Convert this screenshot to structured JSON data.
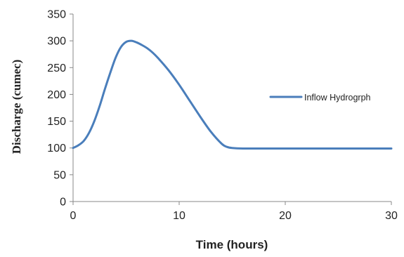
{
  "chart_data": {
    "type": "line",
    "title": "",
    "xlabel": "Time (hours)",
    "ylabel": "Discharge (cumec)",
    "xlim": [
      0,
      30
    ],
    "ylim": [
      0,
      350
    ],
    "xticks": [
      0,
      10,
      20,
      30
    ],
    "yticks": [
      0,
      50,
      100,
      150,
      200,
      250,
      300,
      350
    ],
    "grid": false,
    "legend_position": "right",
    "series": [
      {
        "name": "Inflow Hydrogrph",
        "color": "#4a7ebb",
        "points": [
          [
            0,
            100
          ],
          [
            0.5,
            105
          ],
          [
            1,
            113
          ],
          [
            1.5,
            128
          ],
          [
            2,
            150
          ],
          [
            2.5,
            178
          ],
          [
            3,
            210
          ],
          [
            3.5,
            240
          ],
          [
            4,
            268
          ],
          [
            4.5,
            288
          ],
          [
            5,
            298
          ],
          [
            5.5,
            300
          ],
          [
            6,
            297
          ],
          [
            6.5,
            292
          ],
          [
            7,
            286
          ],
          [
            7.5,
            278
          ],
          [
            8,
            268
          ],
          [
            9,
            245
          ],
          [
            10,
            218
          ],
          [
            11,
            188
          ],
          [
            12,
            158
          ],
          [
            13,
            130
          ],
          [
            14,
            108
          ],
          [
            14.5,
            102
          ],
          [
            15,
            100
          ],
          [
            16,
            99
          ],
          [
            18,
            99
          ],
          [
            20,
            99
          ],
          [
            22,
            99
          ],
          [
            25,
            99
          ],
          [
            30,
            99
          ]
        ]
      }
    ]
  }
}
